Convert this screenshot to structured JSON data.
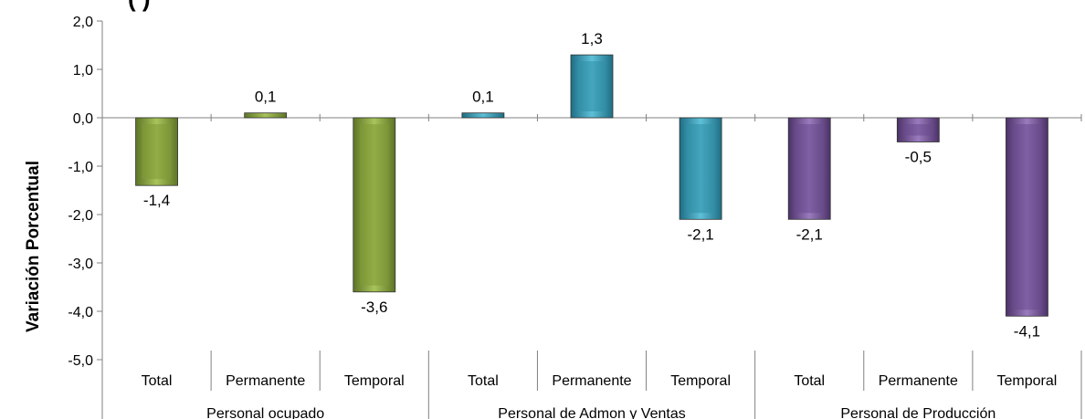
{
  "chart_data": {
    "type": "bar",
    "title_fragment": "(          )",
    "ylabel": "Variación Porcentual",
    "ylim": [
      -5.0,
      2.0
    ],
    "yticks": [
      "2,0",
      "1,0",
      "0,0",
      "-1,0",
      "-2,0",
      "-3,0",
      "-4,0",
      "-5,0"
    ],
    "groups": [
      "Personal ocupado",
      "Personal de Admon y Ventas",
      "Personal de Producción"
    ],
    "categories": [
      "Total",
      "Permanente",
      "Temporal",
      "Total",
      "Permanente",
      "Temporal",
      "Total",
      "Permanente",
      "Temporal"
    ],
    "values": [
      -1.4,
      0.1,
      -3.6,
      0.1,
      1.3,
      -2.1,
      -2.1,
      -0.5,
      -4.1
    ],
    "value_labels": [
      "-1,4",
      "0,1",
      "-3,6",
      "0,1",
      "1,3",
      "-2,1",
      "-2,1",
      "-0,5",
      "-4,1"
    ],
    "group_colors": [
      "#7F9A37",
      "#2F8FA8",
      "#6A4A8E"
    ],
    "grid": false,
    "legend": "none"
  }
}
